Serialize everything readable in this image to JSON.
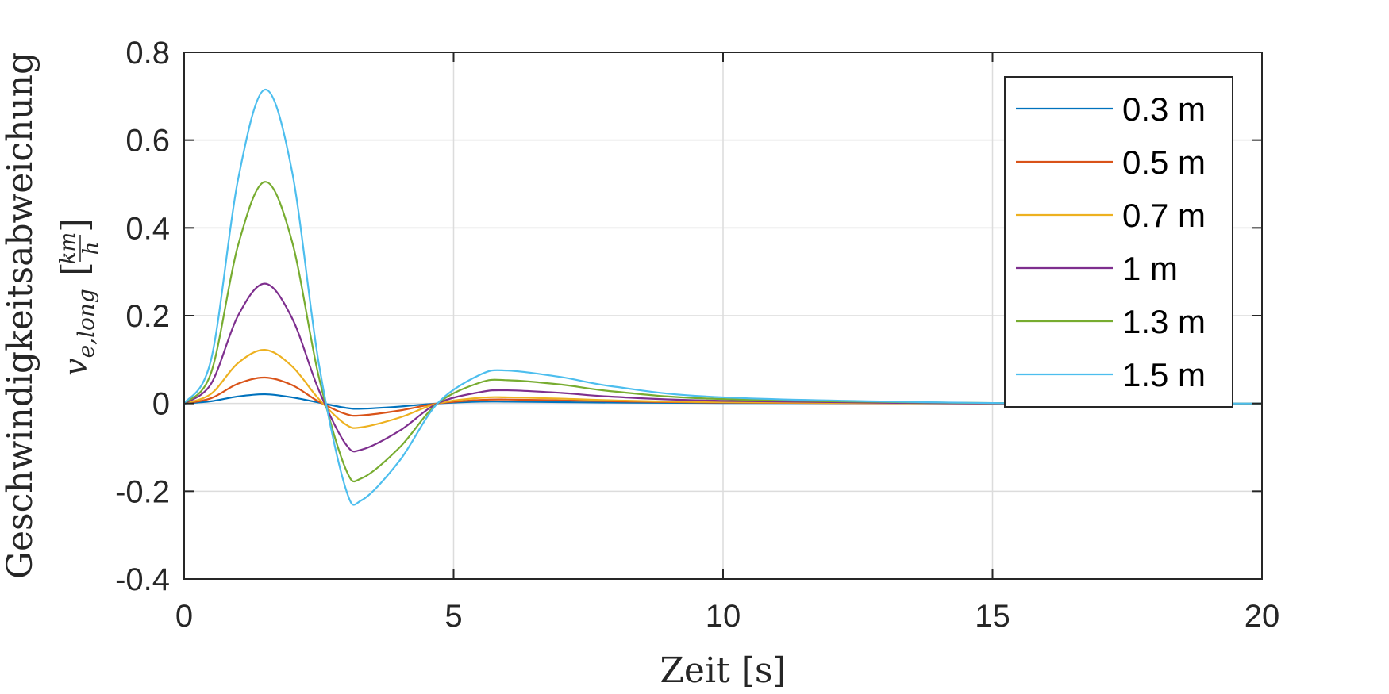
{
  "chart_data": {
    "type": "line",
    "title": "",
    "xlabel": "Zeit [s]",
    "ylabel": {
      "line1": "Geschwindigkeitsabweichung",
      "line2_main": "v",
      "line2_sub": "e,long",
      "unit_num": "km",
      "unit_den": "h"
    },
    "xlim": [
      0,
      20
    ],
    "ylim": [
      -0.4,
      0.8
    ],
    "xticks": [
      0,
      5,
      10,
      15,
      20
    ],
    "xtick_labels": [
      "0",
      "5",
      "10",
      "15",
      "20"
    ],
    "yticks": [
      -0.4,
      -0.2,
      0,
      0.2,
      0.4,
      0.6,
      0.8
    ],
    "ytick_labels": [
      "-0.4",
      "-0.2",
      "0",
      "0.2",
      "0.4",
      "0.6",
      "0.8"
    ],
    "grid": true,
    "legend_position": "top-right",
    "series": [
      {
        "name": "0.3 m",
        "color": "#0072BD",
        "x": [
          0,
          0.5,
          1.0,
          1.5,
          2.0,
          2.5,
          3.0,
          3.3,
          4.0,
          4.7,
          5.5,
          6.0,
          7.0,
          8.0,
          10.0,
          15.0,
          20.0
        ],
        "y": [
          0,
          0.005,
          0.016,
          0.021,
          0.014,
          0.002,
          -0.01,
          -0.012,
          -0.007,
          0,
          0.004,
          0.004,
          0.003,
          0.002,
          0.001,
          0,
          0
        ]
      },
      {
        "name": "0.5 m",
        "color": "#D95319",
        "x": [
          0,
          0.5,
          1.0,
          1.5,
          2.0,
          2.5,
          3.0,
          3.3,
          4.0,
          4.7,
          5.5,
          6.0,
          7.0,
          8.0,
          10.0,
          15.0,
          20.0
        ],
        "y": [
          0,
          0.012,
          0.045,
          0.059,
          0.042,
          0.004,
          -0.024,
          -0.027,
          -0.016,
          0,
          0.008,
          0.009,
          0.007,
          0.005,
          0.002,
          0,
          0
        ]
      },
      {
        "name": "0.7 m",
        "color": "#EDB120",
        "x": [
          0,
          0.5,
          1.0,
          1.5,
          2.0,
          2.5,
          3.0,
          3.3,
          4.0,
          4.7,
          5.5,
          6.0,
          7.0,
          8.0,
          10.0,
          15.0,
          20.0
        ],
        "y": [
          0,
          0.022,
          0.092,
          0.122,
          0.085,
          0.01,
          -0.048,
          -0.054,
          -0.032,
          0,
          0.013,
          0.014,
          0.011,
          0.007,
          0.003,
          0,
          0
        ]
      },
      {
        "name": "1 m",
        "color": "#7E2F8E",
        "x": [
          0,
          0.5,
          1.0,
          1.5,
          2.0,
          2.5,
          3.0,
          3.3,
          4.0,
          4.7,
          5.5,
          6.0,
          7.0,
          8.0,
          10.0,
          15.0,
          20.0
        ],
        "y": [
          0,
          0.045,
          0.2,
          0.273,
          0.195,
          0.03,
          -0.093,
          -0.105,
          -0.062,
          0,
          0.026,
          0.03,
          0.024,
          0.015,
          0.006,
          0,
          0
        ]
      },
      {
        "name": "1.3 m",
        "color": "#77AC30",
        "x": [
          0,
          0.5,
          1.0,
          1.5,
          2.0,
          2.5,
          3.0,
          3.3,
          4.0,
          4.7,
          5.5,
          6.0,
          7.0,
          8.0,
          10.0,
          15.0,
          20.0
        ],
        "y": [
          0,
          0.07,
          0.36,
          0.505,
          0.37,
          0.06,
          -0.15,
          -0.17,
          -0.1,
          0,
          0.048,
          0.053,
          0.043,
          0.027,
          0.01,
          0.001,
          0
        ]
      },
      {
        "name": "1.5 m",
        "color": "#4DBEEE",
        "x": [
          0,
          0.5,
          1.0,
          1.5,
          2.0,
          2.5,
          3.0,
          3.3,
          4.0,
          4.7,
          5.5,
          6.0,
          7.0,
          8.0,
          10.0,
          15.0,
          20.0
        ],
        "y": [
          0,
          0.1,
          0.51,
          0.715,
          0.53,
          0.09,
          -0.195,
          -0.22,
          -0.13,
          0,
          0.066,
          0.075,
          0.06,
          0.038,
          0.014,
          0.001,
          0
        ]
      }
    ]
  }
}
